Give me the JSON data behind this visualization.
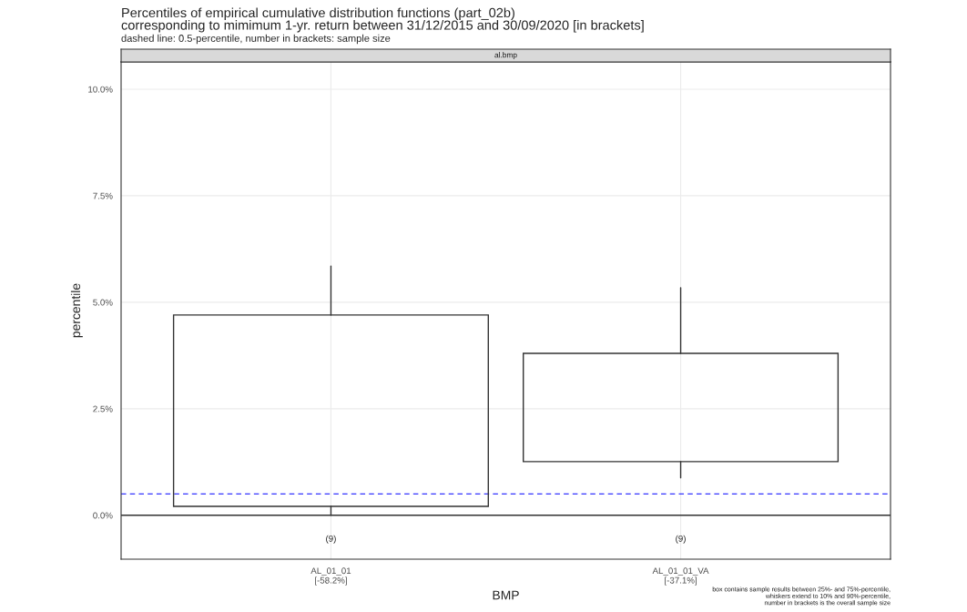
{
  "chart_data": {
    "type": "box",
    "title": "Percentiles of empirical cumulative distribution functions (part_02b)\ncorresponding to mimimum 1-yr. return between 31/12/2015 and 30/09/2020 [in brackets]",
    "subtitle": "dashed line: 0.5-percentile, number in brackets: sample size",
    "xlabel": "BMP",
    "ylabel": "percentile",
    "categories": [
      "AL_01_01\n[-58.2%]",
      "AL_01_01_VA\n[-37.1%]"
    ],
    "boxes": [
      {
        "low": 0.0,
        "q1": 0.21,
        "q3": 4.7,
        "high": 5.85
      },
      {
        "low": 0.88,
        "q1": 1.26,
        "q3": 3.8,
        "high": 5.34
      }
    ],
    "ylim": [
      -1.03,
      10.64
    ],
    "yticks": [
      {
        "value": 0,
        "label": "0.0%"
      },
      {
        "value": 2.5,
        "label": "2.5%"
      },
      {
        "value": 5,
        "label": "5.0%"
      },
      {
        "value": 7.5,
        "label": "7.5%"
      },
      {
        "value": 10,
        "label": "10.0%"
      }
    ],
    "ref_lines": [
      {
        "axis": "y",
        "value": 0,
        "color": "#333333",
        "line_style": "solid"
      },
      {
        "axis": "y",
        "value": 0.5,
        "color": "#3333ff",
        "line_style": "dashed"
      }
    ],
    "annotations": [
      "al.bmp",
      "(9)",
      "(9)",
      "box contains sample results between 25%- and 75%-percentile,\nwhiskers extend to 10% and 90%-percentile,\nnumber in brackets is the overall sample size"
    ],
    "grid": true
  }
}
